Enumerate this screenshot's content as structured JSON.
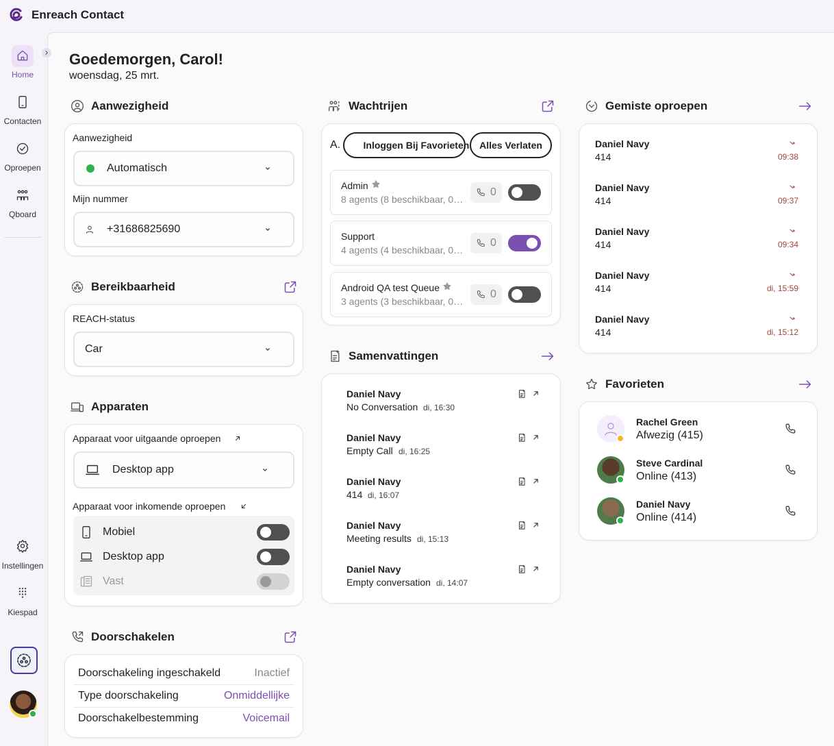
{
  "app": {
    "title": "Enreach Contact"
  },
  "nav": {
    "items": [
      "Home",
      "Contacten",
      "Oproepen",
      "Qboard"
    ],
    "bottom": [
      "Instellingen",
      "Kiespad"
    ]
  },
  "greeting": {
    "title": "Goedemorgen, Carol!",
    "date": "woensdag, 25 mrt."
  },
  "presence": {
    "heading": "Aanwezigheid",
    "status_label": "Aanwezigheid",
    "status": "Automatisch",
    "number_label": "Mijn nummer",
    "number": "+31686825690"
  },
  "reachability": {
    "heading": "Bereikbaarheid",
    "label": "REACH-status",
    "status": "Car"
  },
  "devices": {
    "heading": "Apparaten",
    "outgoing_label": "Apparaat voor uitgaande oproepen",
    "outgoing": "Desktop app",
    "incoming_label": "Apparaat voor inkomende oproepen",
    "incoming": [
      {
        "name": "Mobiel",
        "on": false
      },
      {
        "name": "Desktop app",
        "on": false
      },
      {
        "name": "Vast",
        "on": false,
        "disabled": true
      }
    ]
  },
  "forwarding": {
    "heading": "Doorschakelen",
    "rows": [
      {
        "label": "Doorschakeling ingeschakeld",
        "value": "Inactief"
      },
      {
        "label": "Type doorschakeling",
        "value": "Onmiddellijke"
      },
      {
        "label": "Doorschakelbestemming",
        "value": "Voicemail"
      }
    ]
  },
  "queues": {
    "heading": "Wachtrijen",
    "prefix": "A.",
    "buttons": [
      "Inloggen Bij Favorieten",
      "Alles Verlaten"
    ],
    "items": [
      {
        "name": "Admin",
        "favorite": true,
        "detail": "8 agents (8 beschikbaar, 0…",
        "count": 0,
        "on": false
      },
      {
        "name": "Support",
        "favorite": false,
        "detail": "4 agents (4 beschikbaar, 0…",
        "count": 0,
        "on": true
      },
      {
        "name": "Android QA test Queue",
        "favorite": true,
        "detail": "3 agents (3 beschikbaar, 0…",
        "count": 0,
        "on": false
      }
    ]
  },
  "summaries": {
    "heading": "Samenvattingen",
    "items": [
      {
        "name": "Daniel Navy",
        "subject": "No Conversation",
        "time": "di, 16:30"
      },
      {
        "name": "Daniel Navy",
        "subject": "Empty Call",
        "time": "di, 16:25"
      },
      {
        "name": "Daniel Navy",
        "subject": "414",
        "time": "di, 16:07"
      },
      {
        "name": "Daniel Navy",
        "subject": "Meeting results",
        "time": "di, 15:13"
      },
      {
        "name": "Daniel Navy",
        "subject": "Empty conversation",
        "time": "di, 14:07"
      }
    ]
  },
  "missed": {
    "heading": "Gemiste oproepen",
    "items": [
      {
        "name": "Daniel Navy",
        "number": "414",
        "time": "09:38"
      },
      {
        "name": "Daniel Navy",
        "number": "414",
        "time": "09:37"
      },
      {
        "name": "Daniel Navy",
        "number": "414",
        "time": "09:34"
      },
      {
        "name": "Daniel Navy",
        "number": "414",
        "time": "di, 15:59"
      },
      {
        "name": "Daniel Navy",
        "number": "414",
        "time": "di, 15:12"
      }
    ]
  },
  "favorites": {
    "heading": "Favorieten",
    "items": [
      {
        "name": "Rachel Green",
        "status": "Afwezig (415)"
      },
      {
        "name": "Steve Cardinal",
        "status": "Online (413)"
      },
      {
        "name": "Daniel Navy",
        "status": "Online (414)"
      }
    ]
  }
}
